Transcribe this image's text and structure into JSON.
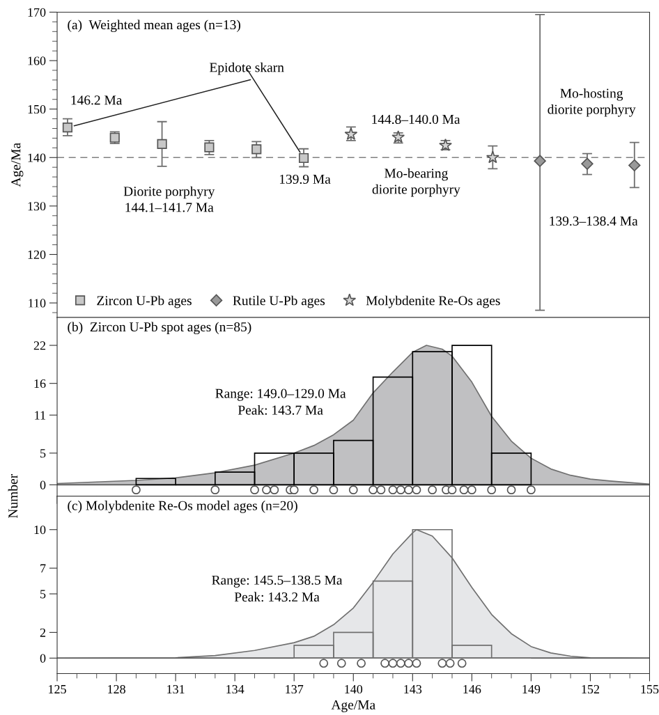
{
  "chart_data": [
    {
      "type": "scatter",
      "title": "(a)  Weighted mean ages (n=13)",
      "ylabel": "Age/Ma",
      "categories": [
        null,
        null,
        null,
        null,
        null,
        null,
        null,
        null,
        null,
        null,
        null,
        null,
        null
      ],
      "series": [
        {
          "name": "Zircon U-Pb ages",
          "marker": "square",
          "color": "#c8c8c8",
          "values": [
            146.2,
            144.1,
            142.8,
            142.1,
            141.7,
            139.9,
            null,
            null,
            null,
            null,
            null,
            null,
            null
          ],
          "errors": [
            [
              144.5,
              148.0
            ],
            [
              142.9,
              145.3
            ],
            [
              138.2,
              147.4
            ],
            [
              140.6,
              143.5
            ],
            [
              140.0,
              143.3
            ],
            [
              138.1,
              141.8
            ],
            null,
            null,
            null,
            null,
            null,
            null,
            null
          ]
        },
        {
          "name": "Rutile U-Pb ages",
          "marker": "diamond",
          "color": "#999999",
          "values": [
            null,
            null,
            null,
            null,
            null,
            null,
            null,
            null,
            null,
            null,
            139.3,
            138.7,
            138.4
          ],
          "errors": [
            null,
            null,
            null,
            null,
            null,
            null,
            null,
            null,
            null,
            null,
            [
              108.5,
              169.5
            ],
            [
              136.5,
              140.8
            ],
            [
              133.8,
              143.1
            ]
          ]
        },
        {
          "name": "Molybdenite Re-Os ages",
          "marker": "star",
          "color": "#d4d4d4",
          "values": [
            null,
            null,
            null,
            null,
            null,
            null,
            144.8,
            144.2,
            142.5,
            140.0,
            null,
            null,
            null
          ],
          "errors": [
            null,
            null,
            null,
            null,
            null,
            null,
            [
              143.5,
              146.3
            ],
            [
              143.0,
              145.1
            ],
            [
              141.6,
              143.5
            ],
            [
              137.7,
              142.4
            ],
            null,
            null,
            null
          ]
        }
      ],
      "annotations": [
        "Epidote skarn",
        "146.2 Ma",
        "139.9 Ma",
        "Diorite porphyry\n144.1–141.7 Ma",
        "144.8–140.0 Ma",
        "Mo-bearing\ndiorite porphyry",
        "Mo-hosting\ndiorite porphyry",
        "139.3–138.4 Ma"
      ],
      "ref_lines": [
        {
          "axis": "y",
          "value": 140,
          "color": "#808080",
          "line_style": "dashed"
        }
      ],
      "ylim": [
        107,
        170
      ],
      "yticks": [
        110,
        120,
        130,
        140,
        150,
        160,
        170
      ],
      "legend": "bottom left",
      "tick_labels": "y"
    },
    {
      "type": "histogram",
      "title": "(b)  Zircon U-Pb spot ages (n=85)",
      "ylabel": "Number",
      "bins": [
        129,
        131,
        133,
        135,
        137,
        139,
        141,
        143,
        145,
        147,
        149
      ],
      "values": [
        1,
        0,
        2,
        5,
        5,
        7,
        17,
        21,
        22,
        5
      ],
      "color": "#000000",
      "series": [
        {
          "type": "area",
          "color": "#c0c0c2",
          "x": [
            125,
            129,
            131,
            133,
            135,
            137,
            138,
            139,
            140,
            141,
            142,
            143,
            143.7,
            144.5,
            145,
            146,
            147,
            148,
            149,
            150,
            151,
            152,
            153,
            155
          ],
          "values": [
            0.2,
            0.7,
            1.1,
            1.9,
            3.1,
            5.0,
            6.2,
            7.9,
            10.2,
            14.5,
            17.8,
            20.9,
            22.0,
            21.4,
            20.3,
            16.2,
            10.8,
            6.9,
            4.2,
            2.5,
            1.5,
            0.9,
            0.6,
            0.1
          ]
        },
        {
          "type": "scatter",
          "marker": "circle",
          "color": "#ffffff",
          "x": [
            129,
            133,
            135,
            135.6,
            136,
            136.8,
            137,
            138,
            139,
            140,
            141,
            141.4,
            142,
            142.4,
            142.8,
            143.2,
            144,
            144.7,
            145,
            145.6,
            146,
            147,
            148,
            149
          ],
          "values": [
            -0.8,
            -0.8,
            -0.8,
            -0.8,
            -0.8,
            -0.8,
            -0.8,
            -0.8,
            -0.8,
            -0.8,
            -0.8,
            -0.8,
            -0.8,
            -0.8,
            -0.8,
            -0.8,
            -0.8,
            -0.8,
            -0.8,
            -0.8,
            -0.8,
            -0.8,
            -0.8,
            -0.8
          ]
        }
      ],
      "annotations": [
        "Range: 149.0–129.0 Ma",
        "Peak: 143.7 Ma"
      ],
      "xlim": [
        125,
        155
      ],
      "xticks": [
        125,
        128,
        131,
        134,
        137,
        140,
        143,
        146,
        149,
        152,
        155
      ],
      "ylim": [
        -1.8,
        26.4
      ],
      "yticks": [
        0,
        5,
        11,
        16,
        22
      ],
      "tick_labels": "y"
    },
    {
      "type": "histogram",
      "title": "(c) Molybdenite Re-Os model ages (n=20)",
      "xlabel": "Age/Ma",
      "bins": [
        137,
        139,
        141,
        143,
        145,
        147,
        149
      ],
      "values": [
        1,
        2,
        6,
        10,
        1,
        0
      ],
      "color": "#707070",
      "series": [
        {
          "type": "area",
          "color": "#e6e7e9",
          "x": [
            125,
            131,
            133,
            135,
            137,
            138,
            139,
            140,
            141,
            142,
            143,
            143.2,
            144,
            145,
            146,
            147,
            148,
            149,
            150,
            151,
            152,
            155
          ],
          "values": [
            0,
            0.03,
            0.2,
            0.6,
            1.2,
            1.7,
            2.6,
            3.9,
            5.9,
            8.1,
            9.75,
            10.0,
            9.5,
            7.8,
            5.5,
            3.4,
            1.9,
            0.9,
            0.4,
            0.15,
            0.03,
            0
          ]
        },
        {
          "type": "scatter",
          "marker": "circle",
          "color": "#ffffff",
          "x": [
            138.5,
            139.4,
            140.4,
            141.6,
            142.0,
            142.4,
            142.8,
            143.2,
            144.5,
            144.9,
            145.5
          ],
          "values": [
            -0.4,
            -0.4,
            -0.4,
            -0.4,
            -0.4,
            -0.4,
            -0.4,
            -0.4,
            -0.4,
            -0.4,
            -0.4
          ]
        }
      ],
      "annotations": [
        "Range: 145.5–138.5 Ma",
        "Peak: 143.2 Ma"
      ],
      "xlim": [
        125,
        155
      ],
      "xticks": [
        125,
        128,
        131,
        134,
        137,
        140,
        143,
        146,
        149,
        152,
        155
      ],
      "ylim": [
        -1.2,
        12.6
      ],
      "yticks": [
        0,
        2,
        5,
        7,
        10
      ]
    }
  ]
}
